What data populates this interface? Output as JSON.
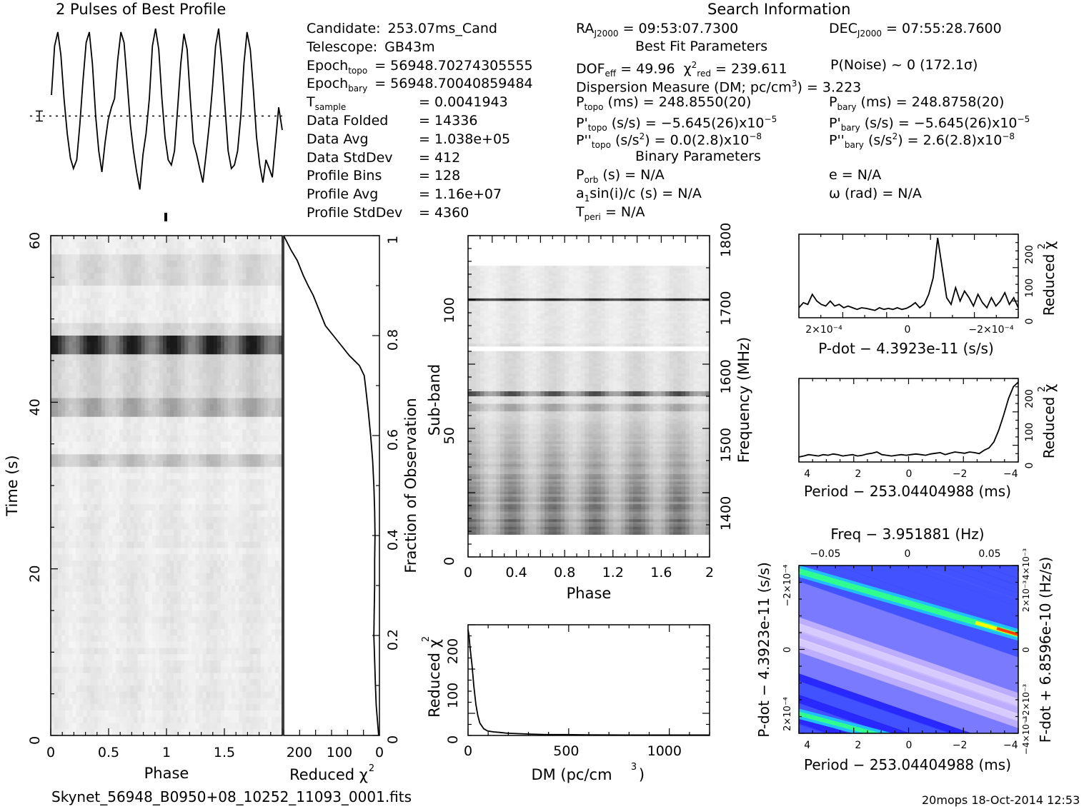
{
  "page": {
    "profile_title": "2 Pulses of Best Profile",
    "search_title": "Search Information",
    "filename": "Skynet_56948_B0950+08_10252_11093_0001.fits",
    "footer": "20mops 18-Oct-2014 12:53"
  },
  "info": {
    "left": [
      {
        "label": "Candidate:",
        "value": "253.07ms_Cand"
      },
      {
        "label": "Telescope:",
        "value": "GB43m"
      },
      {
        "label": "Epoch",
        "sub": "topo",
        "value": "= 56948.70274305555"
      },
      {
        "label": "Epoch",
        "sub": "bary",
        "value": "= 56948.70040859484"
      },
      {
        "label": "T",
        "sub": "sample",
        "value": "=   0.0041943"
      },
      {
        "label": "Data Folded",
        "value": "=   14336"
      },
      {
        "label": "Data Avg",
        "value": "=   1.038e+05"
      },
      {
        "label": "Data StdDev",
        "value": "=   412"
      },
      {
        "label": "Profile Bins",
        "value": "=   128"
      },
      {
        "label": "Profile Avg",
        "value": "=   1.16e+07"
      },
      {
        "label": "Profile StdDev",
        "value": "=   4360"
      }
    ],
    "ra": {
      "label": "RA",
      "sub": "J2000",
      "value": "= 09:53:07.7300"
    },
    "dec": {
      "label": "DEC",
      "sub": "J2000",
      "value": "= 07:55:28.7600"
    },
    "best_fit_title": "Best Fit Parameters",
    "dof": "DOF",
    "dof_sub": "eff",
    "dof_val": "= 49.96",
    "chi": "χ",
    "chi_sup": "2",
    "chi_sub": "red",
    "chi_val": "= 239.611",
    "pnoise": "P(Noise) ~ 0   (172.1σ)",
    "dm_line": "Dispersion Measure (DM; pc/cm",
    "dm_sup": "3",
    "dm_val": ") = 3.223",
    "ptopo": {
      "label": "P",
      "sub": "topo",
      "value": "(ms) =  248.8550(20)"
    },
    "pbary": {
      "label": "P",
      "sub": "bary",
      "value": "(ms) =  248.8758(20)"
    },
    "pdtopo": {
      "label": "P'",
      "sub": "topo",
      "value": "(s/s) = −5.645(26)x10",
      "exp": "−5"
    },
    "pdbary": {
      "label": "P'",
      "sub": "bary",
      "value": "(s/s) = −5.645(26)x10",
      "exp": "−5"
    },
    "pddtopo": {
      "label": "P''",
      "sub": "topo",
      "value": "(s/s",
      "sup": "2",
      "value2": ") = 0.0(2.8)x10",
      "exp": "−8"
    },
    "pddbary": {
      "label": "P''",
      "sub": "bary",
      "value": "(s/s",
      "sup": "2",
      "value2": ") =  2.6(2.8)x10",
      "exp": "−8"
    },
    "binary_title": "Binary Parameters",
    "porb": {
      "label": "P",
      "sub": "orb",
      "value": "(s) = N/A"
    },
    "e": "e = N/A",
    "a1": {
      "label": "a",
      "sub": "1",
      "value": "sin(i)/c (s) = N/A"
    },
    "omega": "ω (rad) = N/A",
    "tperi": {
      "label": "T",
      "sub": "peri",
      "value": "= N/A"
    }
  },
  "chart_data": [
    {
      "id": "profile",
      "type": "line",
      "title": "2 Pulses of Best Profile",
      "x": [
        0.0,
        0.027,
        0.055,
        0.082,
        0.109,
        0.137,
        0.164,
        0.191,
        0.219,
        0.246,
        0.273,
        0.301,
        0.328,
        0.355,
        0.383,
        0.41,
        0.437,
        0.465,
        0.492,
        0.52,
        0.547,
        0.574,
        0.602,
        0.629,
        0.656,
        0.684,
        0.711,
        0.738,
        0.766,
        0.793,
        0.82,
        0.848,
        0.875,
        0.902,
        0.93,
        0.957,
        0.984,
        1.012,
        1.039,
        1.066,
        1.094,
        1.121,
        1.148,
        1.176,
        1.203,
        1.23,
        1.258,
        1.285,
        1.312,
        1.34,
        1.367,
        1.395,
        1.422,
        1.449,
        1.477,
        1.504,
        1.531,
        1.559,
        1.586,
        1.613,
        1.641,
        1.668,
        1.695,
        1.723,
        1.75,
        1.777,
        1.805,
        1.832,
        1.859,
        1.887,
        1.914,
        1.941,
        1.969,
        2.0
      ],
      "values": [
        0.62,
        0.9,
        0.98,
        0.85,
        0.6,
        0.4,
        0.26,
        0.2,
        0.25,
        0.45,
        0.7,
        0.92,
        0.98,
        0.8,
        0.5,
        0.3,
        0.18,
        0.35,
        0.48,
        0.55,
        0.6,
        0.82,
        0.98,
        0.92,
        0.7,
        0.45,
        0.3,
        0.18,
        0.08,
        0.28,
        0.4,
        0.6,
        0.9,
        1.0,
        0.88,
        0.6,
        0.38,
        0.25,
        0.22,
        0.3,
        0.55,
        0.8,
        0.97,
        0.88,
        0.6,
        0.35,
        0.28,
        0.2,
        0.12,
        0.28,
        0.45,
        0.66,
        0.9,
        1.0,
        0.8,
        0.55,
        0.3,
        0.2,
        0.22,
        0.3,
        0.5,
        0.8,
        0.98,
        0.88,
        0.65,
        0.38,
        0.22,
        0.12,
        0.25,
        0.2,
        0.15,
        0.35,
        0.55,
        0.42
      ],
      "mean_line": 0.5
    },
    {
      "id": "time_phase",
      "type": "heatmap",
      "xlabel": "Phase",
      "ylabel": "Time (s)",
      "xlim": [
        0,
        2
      ],
      "ylim": [
        0,
        60
      ],
      "xticks": [
        "0",
        "0.5",
        "1",
        "1.5"
      ],
      "yticks": [
        "0",
        "20",
        "40",
        "60"
      ],
      "dark_bands_time": [
        47,
        40,
        33.5,
        56
      ]
    },
    {
      "id": "time_chi",
      "type": "line",
      "xlabel": "Reduced χ",
      "xlabel_sup": "2",
      "ylabel": "Fraction of Observation",
      "xlim": [
        239,
        0
      ],
      "ylim": [
        0,
        1
      ],
      "xticks": [
        "200",
        "100",
        "0"
      ],
      "yticks": [
        "0",
        "0.2",
        "0.4",
        "0.6",
        "0.8",
        "1"
      ],
      "frac": [
        0.0,
        0.03,
        0.06,
        0.1,
        0.15,
        0.2,
        0.25,
        0.3,
        0.35,
        0.4,
        0.45,
        0.5,
        0.55,
        0.6,
        0.65,
        0.7,
        0.72,
        0.74,
        0.76,
        0.78,
        0.8,
        0.82,
        0.85,
        0.88,
        0.9,
        0.92,
        0.95,
        0.97,
        1.0
      ],
      "chi": [
        2,
        5,
        8,
        10,
        12,
        14,
        13,
        12,
        12,
        11,
        12,
        14,
        17,
        22,
        28,
        35,
        38,
        50,
        75,
        95,
        115,
        135,
        150,
        165,
        178,
        190,
        205,
        220,
        239
      ]
    },
    {
      "id": "subband_phase",
      "type": "heatmap",
      "xlabel": "Phase",
      "ylabel": "Sub-band",
      "ylabel2": "Frequency (MHz)",
      "xlim": [
        0,
        2
      ],
      "ylim": [
        0,
        128
      ],
      "xticks": [
        "0",
        "0.4",
        "0.8",
        "1.2",
        "1.6",
        "2"
      ],
      "yticks": [
        "0",
        "50",
        "100"
      ],
      "yticks2": [
        "1400",
        "1500",
        "1600",
        "1700",
        "1800"
      ]
    },
    {
      "id": "dm_chi",
      "type": "line",
      "xlabel": "DM (pc/cm",
      "xlabel_sup": "3",
      "xlabel_end": ")",
      "ylabel": "Reduced χ",
      "ylabel_sup": "2",
      "xlim": [
        0,
        1230
      ],
      "ylim": [
        0,
        250
      ],
      "xticks": [
        "0",
        "500",
        "1000"
      ],
      "yticks": [
        "0",
        "100",
        "200"
      ],
      "x": [
        0,
        5,
        10,
        20,
        30,
        40,
        50,
        60,
        80,
        100,
        130,
        160,
        200,
        260,
        320,
        400,
        500,
        600,
        800,
        1000,
        1230
      ],
      "values": [
        239,
        225,
        200,
        160,
        110,
        70,
        45,
        28,
        15,
        10,
        8,
        7,
        5,
        4,
        3,
        2,
        2,
        1.5,
        1,
        1,
        1
      ]
    },
    {
      "id": "pdot_chi",
      "type": "line",
      "xlabel": "P-dot − 4.3923e-11 (s/s)",
      "ylabel": "Reduced χ",
      "ylabel_sup": "2",
      "xlim": [
        0.00033,
        -0.00033
      ],
      "ylim": [
        0,
        250
      ],
      "xticks": [
        "2×10⁻⁴",
        "0",
        "−2×10⁻⁴"
      ],
      "yticks": [
        "0",
        "100",
        "200"
      ],
      "values": [
        30,
        45,
        40,
        70,
        50,
        40,
        35,
        50,
        35,
        40,
        30,
        35,
        30,
        25,
        30,
        28,
        25,
        22,
        30,
        25,
        28,
        25,
        30,
        25,
        28,
        35,
        45,
        30,
        40,
        70,
        120,
        239,
        150,
        60,
        40,
        90,
        50,
        80,
        60,
        35,
        70,
        45,
        30,
        60,
        35,
        50,
        75,
        40,
        60,
        30
      ]
    },
    {
      "id": "period_chi",
      "type": "line",
      "xlabel": "Period − 253.04404988 (ms)",
      "ylabel": "Reduced χ",
      "ylabel_sup": "2",
      "xlim": [
        4.3,
        -4.3
      ],
      "ylim": [
        0,
        250
      ],
      "xticks": [
        "4",
        "2",
        "0",
        "−2",
        "−4"
      ],
      "yticks": [
        "0",
        "100",
        "200"
      ],
      "values": [
        15,
        18,
        22,
        20,
        18,
        22,
        20,
        24,
        22,
        18,
        20,
        22,
        18,
        20,
        24,
        26,
        30,
        22,
        20,
        18,
        20,
        22,
        20,
        22,
        24,
        22,
        20,
        24,
        26,
        28,
        22,
        26,
        30,
        28,
        26,
        30,
        28,
        25,
        35,
        42,
        60,
        95,
        140,
        190,
        225,
        239
      ]
    },
    {
      "id": "pp_plane",
      "type": "heatmap",
      "title": "Freq − 3.951881 (Hz)",
      "xlabel": "Period − 253.04404988 (ms)",
      "ylabel": "P-dot − 4.3923e-11 (s/s)",
      "ylabel2": "F-dot + 6.8596e-10 (Hz/s)",
      "xticks": [
        "4",
        "2",
        "0",
        "−2",
        "−4"
      ],
      "xticks_top": [
        "−0.05",
        "0",
        "0.05"
      ],
      "yticks": [
        "2×10⁻⁴",
        "0",
        "−2×10⁻⁴"
      ],
      "yticks2": [
        "−4×10⁻³",
        "−2×10⁻³",
        "0",
        "2×10⁻³",
        "4×10⁻³"
      ],
      "colors": [
        "#1a1aff",
        "#3a4cff",
        "#7a7aff",
        "#c8b6ff",
        "#e8d8ff",
        "#20c0ff",
        "#30ff90",
        "#ffff00",
        "#ff4000"
      ]
    }
  ]
}
